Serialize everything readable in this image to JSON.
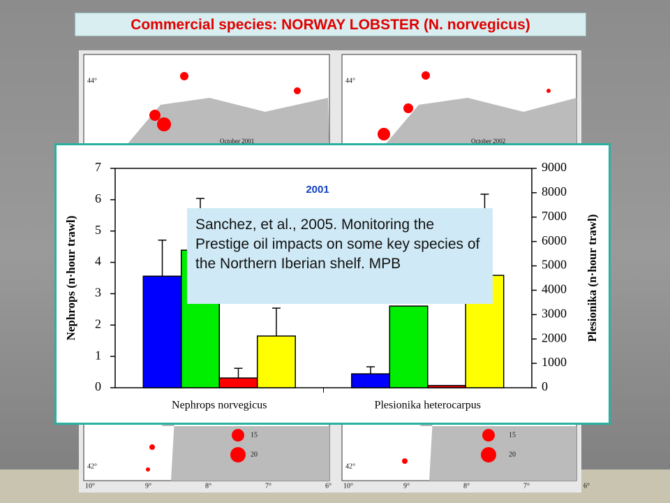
{
  "slide": {
    "title": "Commercial species: NORWAY LOBSTER (N. norvegicus)",
    "citation": "Sanchez, et al., 2005. Monitoring the Prestige oil impacts on some key species of the Northern Iberian shelf. MPB"
  },
  "maps": {
    "lat_top": "44°",
    "lat_bottom": "42°",
    "left_caption": "October 2001",
    "right_caption": "October 2002",
    "lon_labels": [
      "10°",
      "9°",
      "8°",
      "7°",
      "6°"
    ],
    "size_legend": [
      "15",
      "20"
    ]
  },
  "chart_data": {
    "type": "bar",
    "title": "2001",
    "categories": [
      "Nephrops norvegicus",
      "Plesionika heterocarpus"
    ],
    "ylabel": "Nephrops (n·hour trawl)",
    "y2label": "Plesionika (n·hour trawl)",
    "ylim": [
      0,
      7
    ],
    "yticks": [
      0,
      1,
      2,
      3,
      4,
      5,
      6,
      7
    ],
    "y2lim": [
      0,
      9000
    ],
    "y2ticks": [
      0,
      1000,
      2000,
      3000,
      4000,
      5000,
      6000,
      7000,
      8000,
      9000
    ],
    "series": [
      {
        "color": "#0000ff",
        "values": [
          3.56,
          null
        ],
        "errors": [
          1.15,
          null
        ]
      },
      {
        "color": "#00ee00",
        "values": [
          4.39,
          null
        ],
        "errors": [
          1.65,
          null
        ]
      },
      {
        "color": "#ff0000",
        "values": [
          0.31,
          null
        ],
        "errors": [
          0.31,
          null
        ]
      },
      {
        "color": "#ffff00",
        "values": [
          1.65,
          null
        ],
        "errors": [
          0.89,
          null
        ]
      },
      {
        "color": "#0000ff",
        "axis": "y2",
        "values": [
          null,
          570
        ],
        "errors": [
          null,
          290
        ]
      },
      {
        "color": "#00ee00",
        "axis": "y2",
        "values": [
          null,
          3350
        ],
        "errors": [
          null,
          null
        ]
      },
      {
        "color": "#ff0000",
        "axis": "y2",
        "values": [
          null,
          90
        ],
        "errors": [
          null,
          null
        ]
      },
      {
        "color": "#ffff00",
        "axis": "y2",
        "values": [
          null,
          4610
        ],
        "errors": [
          null,
          3330
        ]
      }
    ]
  }
}
